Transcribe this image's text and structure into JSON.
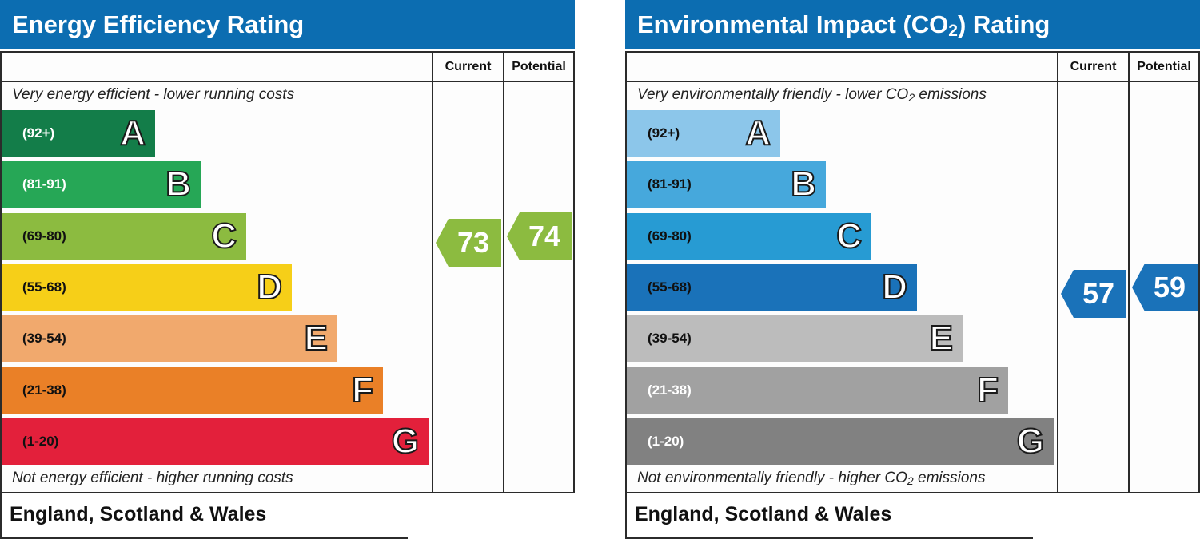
{
  "charts": [
    {
      "id": "energy",
      "title": "Energy Efficiency Rating",
      "title_sub": "",
      "title_end": "",
      "header_color": "#0c6db1",
      "col_current": "Current",
      "col_potential": "Potential",
      "top_caption": "Very energy efficient - lower running costs",
      "top_caption_sub": "",
      "top_caption_end": "",
      "bottom_caption": "Not energy efficient - higher running costs",
      "bottom_caption_sub": "",
      "bottom_caption_end": "",
      "footer": "England, Scotland & Wales",
      "current_value": "73",
      "potential_value": "74",
      "current_band": "C",
      "potential_band": "C",
      "bands": [
        {
          "letter": "A",
          "range": "(92+)",
          "color": "#137d49",
          "text_color": "#ffffff"
        },
        {
          "letter": "B",
          "range": "(81-91)",
          "color": "#26a756",
          "text_color": "#ffffff"
        },
        {
          "letter": "C",
          "range": "(69-80)",
          "color": "#8cbb40",
          "text_color": "#111111"
        },
        {
          "letter": "D",
          "range": "(55-68)",
          "color": "#f6cf18",
          "text_color": "#111111"
        },
        {
          "letter": "E",
          "range": "(39-54)",
          "color": "#f1a96d",
          "text_color": "#111111"
        },
        {
          "letter": "F",
          "range": "(21-38)",
          "color": "#ea8027",
          "text_color": "#111111"
        },
        {
          "letter": "G",
          "range": "(1-20)",
          "color": "#e3203b",
          "text_color": "#111111"
        }
      ]
    },
    {
      "id": "environmental",
      "title": "Environmental Impact (CO",
      "title_sub": "2",
      "title_end": ") Rating",
      "header_color": "#0c6db1",
      "col_current": "Current",
      "col_potential": "Potential",
      "top_caption": "Very environmentally friendly - lower CO",
      "top_caption_sub": "2",
      "top_caption_end": " emissions",
      "bottom_caption": "Not environmentally friendly - higher CO",
      "bottom_caption_sub": "2",
      "bottom_caption_end": " emissions",
      "footer": "England, Scotland & Wales",
      "current_value": "57",
      "potential_value": "59",
      "current_band": "D",
      "potential_band": "D",
      "bands": [
        {
          "letter": "A",
          "range": "(92+)",
          "color": "#8cc6ea",
          "text_color": "#111111"
        },
        {
          "letter": "B",
          "range": "(81-91)",
          "color": "#46a8dc",
          "text_color": "#111111"
        },
        {
          "letter": "C",
          "range": "(69-80)",
          "color": "#279bd3",
          "text_color": "#111111"
        },
        {
          "letter": "D",
          "range": "(55-68)",
          "color": "#1a72b9",
          "text_color": "#111111"
        },
        {
          "letter": "E",
          "range": "(39-54)",
          "color": "#bcbcbc",
          "text_color": "#111111"
        },
        {
          "letter": "F",
          "range": "(21-38)",
          "color": "#a1a1a1",
          "text_color": "#ffffff"
        },
        {
          "letter": "G",
          "range": "(1-20)",
          "color": "#818181",
          "text_color": "#ffffff"
        }
      ]
    }
  ],
  "chart_data": [
    {
      "type": "table",
      "title": "Energy Efficiency Rating",
      "categories": [
        "A",
        "B",
        "C",
        "D",
        "E",
        "F",
        "G"
      ],
      "ranges": [
        "(92+)",
        "(81-91)",
        "(69-80)",
        "(55-68)",
        "(39-54)",
        "(21-38)",
        "(1-20)"
      ],
      "current": 73,
      "potential": 74
    },
    {
      "type": "table",
      "title": "Environmental Impact (CO2) Rating",
      "categories": [
        "A",
        "B",
        "C",
        "D",
        "E",
        "F",
        "G"
      ],
      "ranges": [
        "(92+)",
        "(81-91)",
        "(69-80)",
        "(55-68)",
        "(39-54)",
        "(21-38)",
        "(1-20)"
      ],
      "current": 57,
      "potential": 59
    }
  ]
}
